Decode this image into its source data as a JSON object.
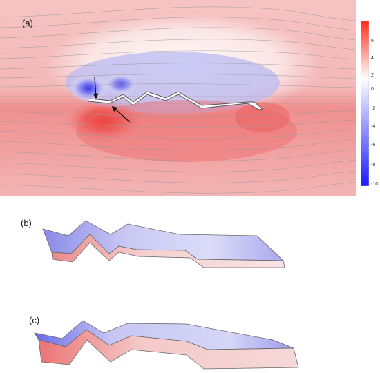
{
  "panels": {
    "a": {
      "label": "(a)"
    },
    "b": {
      "label": "(b)"
    },
    "c": {
      "label": "(c)"
    }
  },
  "colorbar": {
    "ticks": [
      "6",
      "4",
      "2",
      "0",
      "-2",
      "-4",
      "-6",
      "-8",
      "-10"
    ],
    "colors": {
      "max": "#ff2a1a",
      "mid": "#ffffff",
      "min": "#1a1aff"
    }
  },
  "colors": {
    "positive_field": "#f07878",
    "negative_field": "#6a6af0",
    "streamline": "#9a9a9a"
  }
}
